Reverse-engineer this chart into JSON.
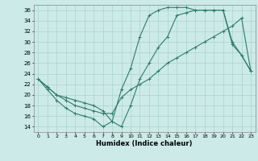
{
  "xlabel": "Humidex (Indice chaleur)",
  "bg_color": "#cceae7",
  "grid_color": "#aad4d0",
  "line_color": "#2e7d6e",
  "xlim": [
    -0.5,
    23.5
  ],
  "ylim": [
    13,
    37
  ],
  "yticks": [
    14,
    16,
    18,
    20,
    22,
    24,
    26,
    28,
    30,
    32,
    34,
    36
  ],
  "xticks": [
    0,
    1,
    2,
    3,
    4,
    5,
    6,
    7,
    8,
    9,
    10,
    11,
    12,
    13,
    14,
    15,
    16,
    17,
    18,
    19,
    20,
    21,
    22,
    23
  ],
  "line1_x": [
    0,
    1,
    2,
    3,
    4,
    5,
    6,
    7,
    8,
    9,
    10,
    11,
    12,
    13,
    14,
    15,
    16,
    17,
    18,
    19,
    20,
    21,
    22,
    23
  ],
  "line1_y": [
    23,
    21,
    19,
    17.5,
    16.5,
    16,
    15.5,
    14,
    15,
    21,
    25,
    31,
    35,
    36,
    36.5,
    36.5,
    36.5,
    36,
    36,
    36,
    36,
    29.5,
    27.5,
    24.5
  ],
  "line2_x": [
    0,
    1,
    2,
    3,
    4,
    5,
    6,
    7,
    8,
    9,
    10,
    11,
    12,
    13,
    14,
    15,
    16,
    17,
    18,
    19,
    20,
    21,
    22,
    23
  ],
  "line2_y": [
    23,
    21.5,
    20,
    19,
    18,
    17.5,
    17,
    16.5,
    16.5,
    19.5,
    21,
    22,
    23,
    24.5,
    26,
    27,
    28,
    29,
    30,
    31,
    32,
    33,
    34.5,
    24.5
  ],
  "line3_x": [
    0,
    1,
    2,
    3,
    4,
    5,
    6,
    7,
    8,
    9,
    10,
    11,
    12,
    13,
    14,
    15,
    16,
    17,
    18,
    19,
    20,
    21,
    22,
    23
  ],
  "line3_y": [
    23,
    21.5,
    20,
    19.5,
    19,
    18.5,
    18,
    17,
    15,
    14,
    18,
    23,
    26,
    29,
    31,
    35,
    35.5,
    36,
    36,
    36,
    36,
    30,
    27.5,
    24.5
  ]
}
